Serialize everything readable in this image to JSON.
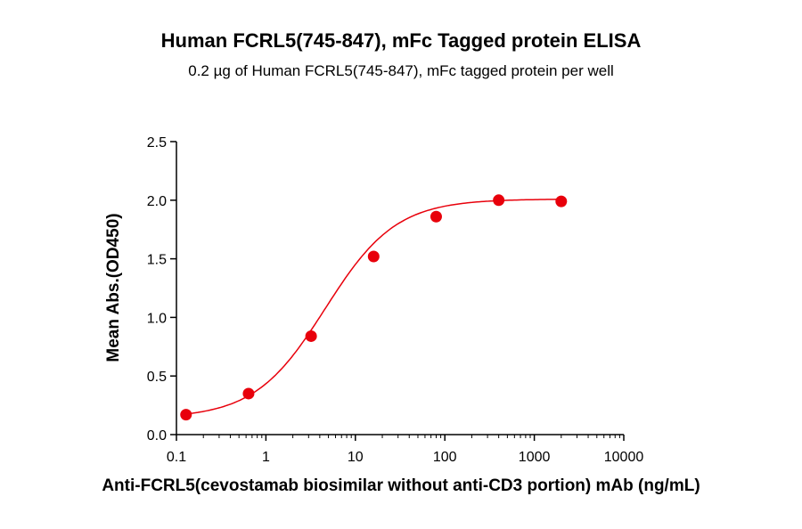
{
  "chart_data": {
    "type": "scatter",
    "title": "Human FCRL5(745-847), mFc Tagged protein ELISA",
    "subtitle": "0.2 µg of Human FCRL5(745-847), mFc tagged protein per well",
    "xlabel": "Anti-FCRL5(cevostamab biosimilar without anti-CD3 portion) mAb (ng/mL)",
    "ylabel": "Mean Abs.(OD450)",
    "x_scale": "log",
    "xlim": [
      0.1,
      10000
    ],
    "ylim": [
      0,
      2.5
    ],
    "x_ticks": [
      "0.1",
      "1",
      "10",
      "100",
      "1000",
      "10000"
    ],
    "y_ticks": [
      "0.0",
      "0.5",
      "1.0",
      "1.5",
      "2.0",
      "2.5"
    ],
    "grid": false,
    "legend": "none",
    "series": [
      {
        "x": [
          0.128,
          0.64,
          3.2,
          16,
          80,
          400,
          2000
        ],
        "y": [
          0.17,
          0.35,
          0.84,
          1.52,
          1.86,
          2.0,
          1.99
        ],
        "color": "#e8000b",
        "fit": "4PL sigmoid"
      }
    ]
  }
}
